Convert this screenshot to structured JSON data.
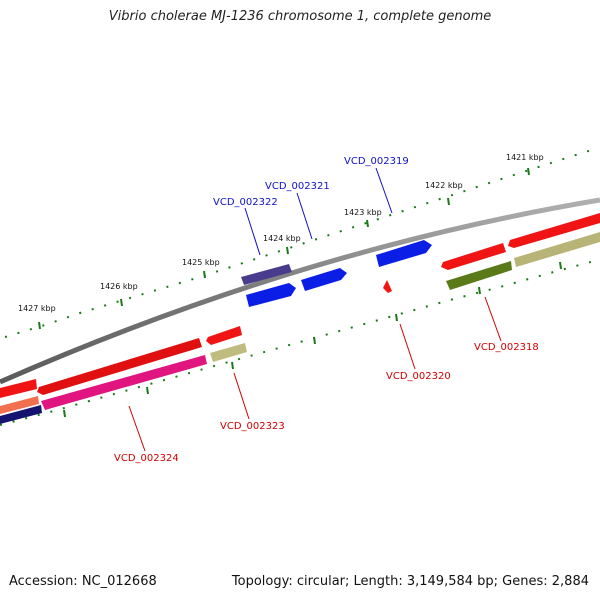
{
  "title": "Vibrio cholerae MJ-1236 chromosome 1, complete genome",
  "accession_text": "Accession: NC_012668",
  "summary_text": "Topology: circular; Length: 3,149,584 bp; Genes: 2,884",
  "colors": {
    "backbone": "#808080",
    "tick": "#1a7a1a",
    "label_plus": "#1010c8",
    "label_minus": "#d00000"
  },
  "kbp_labels": [
    "1421 kbp",
    "1422 kbp",
    "1423 kbp",
    "1424 kbp",
    "1425 kbp",
    "1426 kbp",
    "1427 kbp"
  ],
  "gene_labels": [
    {
      "id": "VCD_002319",
      "strand": "plus"
    },
    {
      "id": "VCD_002321",
      "strand": "plus"
    },
    {
      "id": "VCD_002322",
      "strand": "plus"
    },
    {
      "id": "VCD_002318",
      "strand": "minus"
    },
    {
      "id": "VCD_002320",
      "strand": "minus"
    },
    {
      "id": "VCD_002323",
      "strand": "minus"
    },
    {
      "id": "VCD_002324",
      "strand": "minus"
    }
  ]
}
